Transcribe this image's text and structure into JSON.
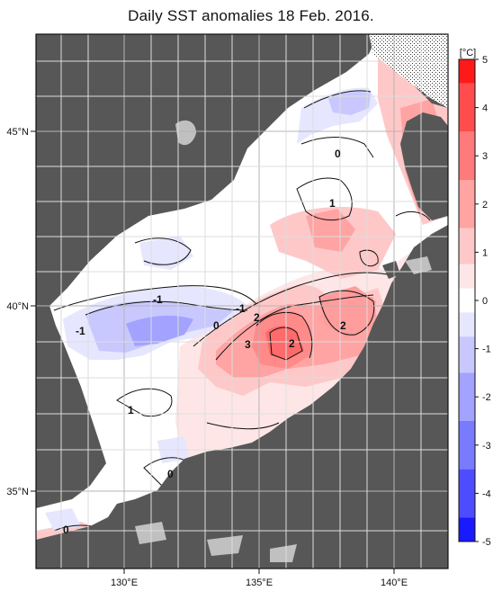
{
  "title": "Daily SST anomalies 18 Feb. 2016.",
  "map": {
    "lon_ticks": [
      "130°E",
      "135°E",
      "140°E"
    ],
    "lat_ticks": [
      "45°N",
      "40°N",
      "35°N"
    ],
    "contour_labels": [
      {
        "text": "0"
      },
      {
        "text": "1"
      },
      {
        "text": "-1"
      },
      {
        "text": "-1"
      },
      {
        "text": "-1"
      },
      {
        "text": "0"
      },
      {
        "text": "2"
      },
      {
        "text": "3"
      },
      {
        "text": "2"
      },
      {
        "text": "2"
      },
      {
        "text": "1"
      },
      {
        "text": "0"
      },
      {
        "text": "0"
      }
    ]
  },
  "colorbar": {
    "unit": "[°C]",
    "ticks": [
      "5",
      "4",
      "3",
      "2",
      "1",
      "0",
      "-1",
      "-2",
      "-3",
      "-4",
      "-5"
    ],
    "colors": [
      "#ff1a1a",
      "#ff4d4d",
      "#ff7a7a",
      "#ffa3a3",
      "#ffc8c8",
      "#ffe6e6",
      "#ffffff",
      "#e6e6ff",
      "#c8c8ff",
      "#a3a3ff",
      "#7a7aff",
      "#4d4dff",
      "#1a1aff"
    ]
  },
  "colors": {
    "land": "#575757",
    "ice": "#c0c0c0",
    "sea": "#ffffff",
    "grid": "#b5b5b5"
  }
}
